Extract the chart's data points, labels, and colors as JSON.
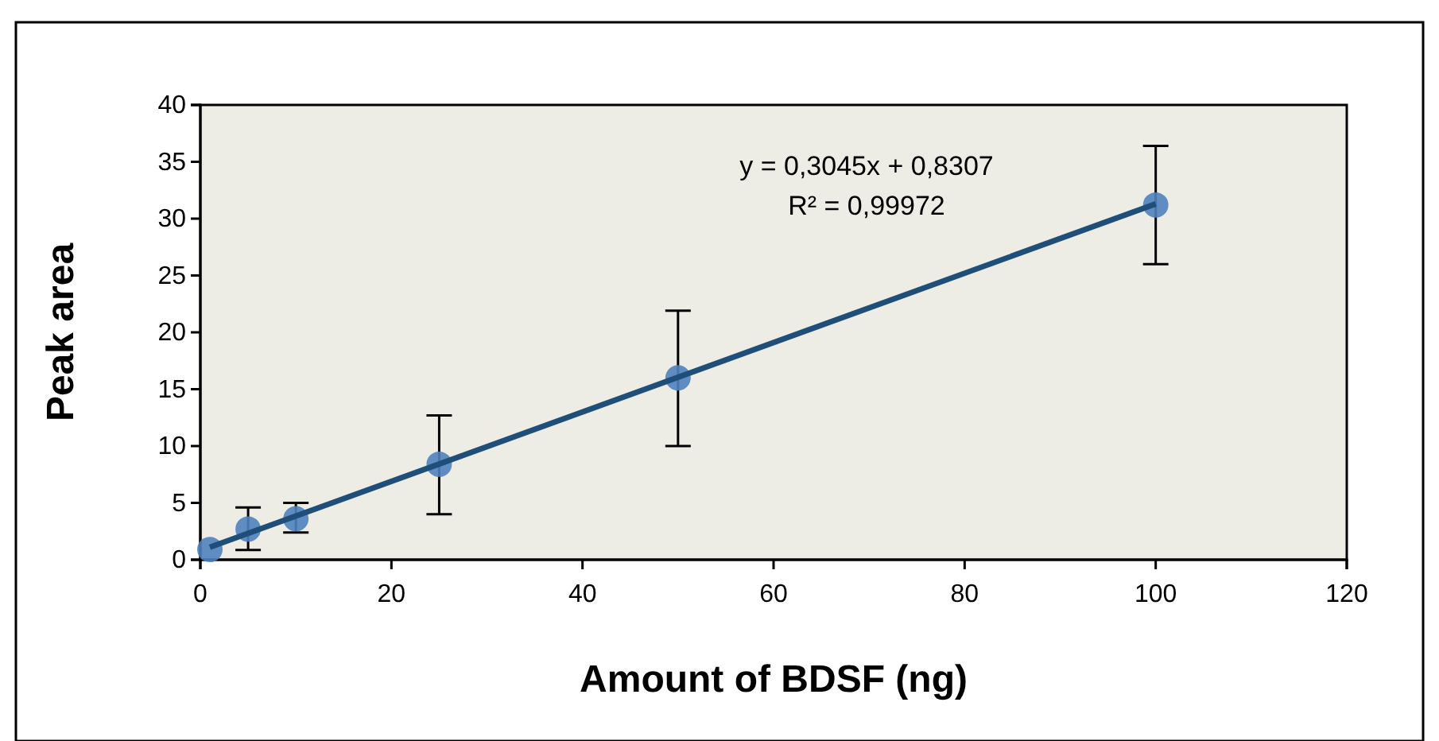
{
  "chart_data": {
    "type": "scatter",
    "xlabel": "Amount of BDSF (ng)",
    "ylabel": "Peak area",
    "xlim": [
      0,
      120
    ],
    "xticks": [
      0,
      20,
      40,
      60,
      80,
      100,
      120
    ],
    "ylim": [
      0,
      40
    ],
    "yticks": [
      0,
      5,
      10,
      15,
      20,
      25,
      30,
      35,
      40
    ],
    "grid": false,
    "series": [
      {
        "marker": "circle",
        "color": "#4f81bd",
        "x": [
          1,
          5,
          10,
          25,
          50,
          100
        ],
        "values": [
          0.9,
          2.7,
          3.6,
          8.4,
          16.0,
          31.2
        ],
        "errors": [
          null,
          [
            0.85,
            4.6
          ],
          [
            2.4,
            5.0
          ],
          [
            4.0,
            12.7
          ],
          [
            10.0,
            21.9
          ],
          [
            26.0,
            36.4
          ]
        ]
      },
      {
        "type": "line",
        "marker": "none",
        "color": "#1f4e79",
        "x": [
          1,
          100
        ],
        "values": [
          1.1,
          31.3
        ],
        "line_style": "solid"
      }
    ],
    "annotations": [
      "y = 0,3045x + 0,8307",
      "R² = 0,99972"
    ]
  }
}
